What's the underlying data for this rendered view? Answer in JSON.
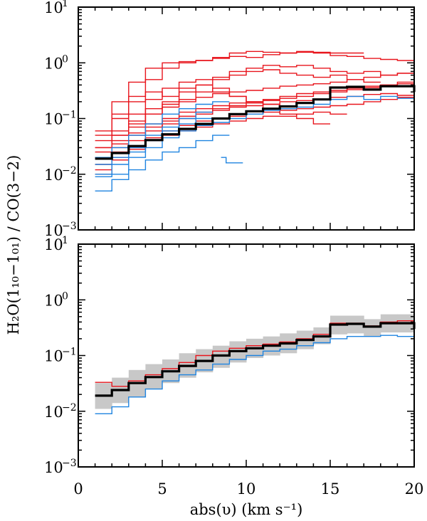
{
  "colors": {
    "red": "#e8141c",
    "blue": "#1f84e0",
    "median": "#000000",
    "band": "#c8c8c8"
  },
  "axis_text": {
    "x_label": "abs(υ) (km s⁻¹)",
    "y_label": "H₂O(1₁₀−1₀₁) / CO(3−2)",
    "y_tick_base": "10",
    "y_ticks": [
      {
        "exp": "1",
        "v": 10
      },
      {
        "exp": "0",
        "v": 1
      },
      {
        "exp": "−1",
        "v": 0.1
      },
      {
        "exp": "−2",
        "v": 0.01
      },
      {
        "exp": "−3",
        "v": 0.001
      }
    ],
    "x_ticks": [
      "0",
      "5",
      "10",
      "15",
      "20"
    ]
  },
  "chart_data": [
    {
      "type": "line",
      "panel": "top",
      "xlabel": "abs(υ) (km s⁻¹)",
      "ylabel": "H₂O(1₁₀−1₀₁) / CO(3−2)",
      "xlim": [
        0,
        20
      ],
      "ylim": [
        0.001,
        10
      ],
      "yscale": "log",
      "step": true,
      "median": {
        "name": "median",
        "x": [
          1.0,
          2.0,
          3.0,
          4.0,
          5.0,
          6.0,
          7.0,
          8.0,
          9.0,
          10.0,
          11.0,
          12.0,
          13.0,
          14.0,
          15.0,
          16.0,
          17.0,
          18.0,
          19.0,
          20.0
        ],
        "values": [
          0.019,
          0.024,
          0.032,
          0.041,
          0.052,
          0.065,
          0.08,
          0.1,
          0.12,
          0.135,
          0.15,
          0.165,
          0.19,
          0.22,
          0.36,
          0.37,
          0.33,
          0.38,
          0.38,
          0.3
        ]
      },
      "red_series": [
        {
          "name": "r1",
          "x": [
            1.0,
            2.0,
            3.0,
            4.0,
            5.0,
            6.0,
            7.0,
            8.0,
            9.0,
            10.0,
            11.0,
            12.0,
            13.0,
            14.0,
            15.0,
            16.0,
            17.0,
            18.0,
            19.0,
            20.0
          ],
          "values": [
            0.04,
            0.1,
            0.25,
            0.5,
            0.8,
            1.0,
            1.1,
            1.2,
            1.3,
            1.25,
            1.4,
            1.5,
            1.55,
            1.5,
            1.35,
            1.3,
            1.2,
            1.15,
            1.1,
            1.05
          ]
        },
        {
          "name": "r2",
          "x": [
            1.0,
            2.0,
            3.0,
            4.0,
            5.0,
            6.0,
            7.0,
            8.0,
            9.0,
            10.0,
            11.0,
            12.0,
            13.0,
            14.0,
            15.0,
            16.0
          ],
          "values": [
            0.06,
            0.2,
            0.45,
            0.8,
            1.0,
            1.05,
            1.1,
            1.25,
            1.5,
            1.6,
            1.55,
            1.5,
            1.6,
            1.55,
            1.5,
            1.5
          ]
        },
        {
          "name": "r3",
          "x": [
            1.0,
            2.0,
            3.0,
            4.0,
            5.0,
            6.0,
            7.0,
            8.0,
            9.0,
            10.0,
            11.0,
            12.0,
            13.0,
            14.0,
            15.0,
            16.0,
            17.0,
            18.0,
            19.0,
            20.0
          ],
          "values": [
            0.03,
            0.06,
            0.12,
            0.22,
            0.35,
            0.45,
            0.5,
            0.55,
            0.7,
            0.8,
            0.9,
            0.85,
            0.9,
            0.8,
            0.7,
            0.65,
            0.7,
            0.6,
            0.65,
            0.55
          ]
        },
        {
          "name": "r4",
          "x": [
            1.0,
            2.0,
            3.0,
            4.0,
            5.0,
            6.0,
            7.0,
            8.0,
            9.0,
            10.0,
            11.0,
            12.0,
            13.0,
            14.0,
            15.0,
            16.0,
            17.0
          ],
          "values": [
            0.025,
            0.05,
            0.09,
            0.15,
            0.2,
            0.3,
            0.4,
            0.5,
            0.6,
            0.7,
            0.75,
            0.65,
            0.6,
            0.55,
            0.6,
            0.5,
            0.45
          ]
        },
        {
          "name": "r5",
          "x": [
            1.0,
            2.0,
            3.0,
            4.0,
            5.0,
            6.0,
            7.0,
            8.0,
            9.0,
            10.0,
            11.0,
            12.0,
            13.0,
            14.0,
            15.0,
            16.0,
            17.0,
            18.0,
            19.0,
            20.0
          ],
          "values": [
            0.03,
            0.05,
            0.08,
            0.12,
            0.16,
            0.2,
            0.24,
            0.28,
            0.3,
            0.32,
            0.35,
            0.38,
            0.4,
            0.42,
            0.45,
            0.5,
            0.55,
            0.6,
            0.65,
            0.7
          ]
        },
        {
          "name": "r6",
          "x": [
            1.0,
            2.0,
            3.0,
            4.0,
            5.0,
            6.0,
            7.0,
            8.0,
            9.0,
            10.0,
            11.0,
            12.0,
            13.0,
            14.0,
            15.0,
            16.0,
            17.0,
            18.0,
            19.0,
            20.0
          ],
          "values": [
            0.02,
            0.035,
            0.055,
            0.08,
            0.1,
            0.13,
            0.15,
            0.17,
            0.19,
            0.2,
            0.22,
            0.25,
            0.28,
            0.3,
            0.32,
            0.35,
            0.38,
            0.4,
            0.42,
            0.45
          ]
        },
        {
          "name": "r7",
          "x": [
            1.0,
            2.0,
            3.0,
            4.0,
            5.0,
            6.0,
            7.0,
            8.0,
            9.0,
            10.0,
            11.0,
            12.0,
            13.0,
            14.0,
            15.0,
            16.0,
            17.0,
            18.0,
            19.0,
            20.0
          ],
          "values": [
            0.015,
            0.025,
            0.04,
            0.06,
            0.08,
            0.1,
            0.12,
            0.14,
            0.16,
            0.17,
            0.18,
            0.2,
            0.21,
            0.22,
            0.24,
            0.25,
            0.27,
            0.28,
            0.26,
            0.25
          ]
        },
        {
          "name": "r8",
          "x": [
            1.0,
            2.0,
            3.0,
            4.0,
            5.0,
            6.0,
            7.0,
            8.0,
            9.0,
            10.0,
            11.0,
            12.0,
            13.0,
            14.0,
            15.0,
            16.0,
            17.0,
            18.0,
            19.0,
            20.0
          ],
          "values": [
            0.012,
            0.02,
            0.03,
            0.045,
            0.06,
            0.075,
            0.09,
            0.1,
            0.11,
            0.12,
            0.13,
            0.14,
            0.15,
            0.16,
            0.17,
            0.18,
            0.2,
            0.22,
            0.24,
            0.25
          ]
        },
        {
          "name": "r9",
          "x": [
            1.0,
            2.0,
            3.0,
            4.0,
            5.0,
            6.0,
            7.0,
            8.0,
            9.0,
            10.0,
            11.0,
            12.0,
            13.0,
            14.0,
            15.0
          ],
          "values": [
            0.01,
            0.018,
            0.028,
            0.04,
            0.05,
            0.06,
            0.07,
            0.08,
            0.09,
            0.1,
            0.11,
            0.11,
            0.12,
            0.13,
            0.12
          ]
        },
        {
          "name": "r10",
          "x": [
            1.0,
            2.0,
            3.0,
            4.0,
            5.0,
            6.0,
            7.0,
            8.0,
            9.0,
            10.0,
            11.0,
            12.0,
            13.0,
            14.0
          ],
          "values": [
            0.02,
            0.04,
            0.07,
            0.12,
            0.18,
            0.22,
            0.3,
            0.35,
            0.25,
            0.2,
            0.15,
            0.12,
            0.1,
            0.08
          ]
        },
        {
          "name": "r11",
          "x": [
            1.0,
            2.0,
            3.0,
            4.0,
            5.0,
            6.0,
            7.0,
            8.0,
            9.0,
            10.0,
            11.0,
            12.0
          ],
          "values": [
            0.05,
            0.12,
            0.2,
            0.3,
            0.25,
            0.35,
            0.4,
            0.3,
            0.25,
            0.2,
            0.18,
            0.15
          ]
        },
        {
          "name": "r12",
          "x": [
            1.0,
            2.0,
            3.0,
            4.0,
            5.0,
            6.0,
            7.0,
            8.0,
            9.0,
            10.0,
            11.0,
            12.0,
            13.0,
            14.0,
            15.0,
            16.0,
            17.0,
            18.0,
            19.0,
            20.0
          ],
          "values": [
            0.02,
            0.03,
            0.05,
            0.07,
            0.09,
            0.11,
            0.13,
            0.15,
            0.17,
            0.19,
            0.21,
            0.23,
            0.25,
            0.28,
            0.3,
            0.33,
            0.36,
            0.4,
            0.45,
            0.5
          ]
        }
      ],
      "blue_series": [
        {
          "name": "b1",
          "x": [
            1.0,
            2.0,
            3.0,
            4.0,
            5.0,
            6.0,
            7.0,
            8.0
          ],
          "values": [
            0.005,
            0.008,
            0.012,
            0.018,
            0.025,
            0.03,
            0.04,
            0.05
          ]
        },
        {
          "name": "b2",
          "x": [
            1.0,
            2.0,
            3.0,
            4.0,
            5.0,
            6.0,
            7.0
          ],
          "values": [
            0.01,
            0.015,
            0.025,
            0.04,
            0.06,
            0.08,
            0.1
          ]
        },
        {
          "name": "b3",
          "x": [
            1.0,
            2.0,
            3.0,
            4.0,
            5.0,
            6.0,
            7.0,
            8.0
          ],
          "values": [
            0.02,
            0.03,
            0.05,
            0.08,
            0.12,
            0.15,
            0.18,
            0.2
          ]
        },
        {
          "name": "b4",
          "x": [
            1.0,
            2.0,
            3.0,
            4.0,
            5.0,
            6.0,
            7.0
          ],
          "values": [
            0.015,
            0.02,
            0.03,
            0.05,
            0.07,
            0.1,
            0.13
          ]
        },
        {
          "name": "b5",
          "x": [
            1.0,
            2.0,
            3.0,
            4.0,
            5.0,
            6.0,
            7.0,
            8.0,
            9.0,
            10.0,
            11.0,
            12.0,
            13.0,
            14.0,
            15.0,
            16.0,
            17.0,
            18.0,
            19.0,
            20.0
          ],
          "values": [
            0.009,
            0.01,
            0.02,
            0.03,
            0.045,
            0.06,
            0.075,
            0.085,
            0.1,
            0.12,
            0.14,
            0.15,
            0.16,
            0.18,
            0.22,
            0.25,
            0.22,
            0.25,
            0.23,
            0.2
          ]
        },
        {
          "name": "b6",
          "x": [
            8.5,
            8.8
          ],
          "values": [
            0.02,
            0.016
          ]
        }
      ]
    },
    {
      "type": "line",
      "panel": "bottom",
      "xlabel": "abs(υ) (km s⁻¹)",
      "ylabel": "H₂O(1₁₀−1₀₁) / CO(3−2)",
      "xlim": [
        0,
        20
      ],
      "ylim": [
        0.001,
        10
      ],
      "yscale": "log",
      "step": true,
      "band": {
        "name": "spread",
        "x": [
          1.0,
          2.0,
          3.0,
          4.0,
          5.0,
          6.0,
          7.0,
          8.0,
          9.0,
          10.0,
          11.0,
          12.0,
          13.0,
          14.0,
          15.0,
          16.0,
          17.0,
          18.0,
          19.0,
          20.0
        ],
        "lower": [
          0.011,
          0.014,
          0.018,
          0.025,
          0.032,
          0.04,
          0.05,
          0.06,
          0.075,
          0.09,
          0.1,
          0.11,
          0.13,
          0.16,
          0.24,
          0.25,
          0.22,
          0.26,
          0.26,
          0.22
        ],
        "upper": [
          0.032,
          0.04,
          0.055,
          0.07,
          0.085,
          0.11,
          0.13,
          0.15,
          0.18,
          0.2,
          0.22,
          0.25,
          0.28,
          0.32,
          0.52,
          0.52,
          0.45,
          0.55,
          0.55,
          0.42
        ]
      },
      "median": {
        "name": "median",
        "x": [
          1.0,
          2.0,
          3.0,
          4.0,
          5.0,
          6.0,
          7.0,
          8.0,
          9.0,
          10.0,
          11.0,
          12.0,
          13.0,
          14.0,
          15.0,
          16.0,
          17.0,
          18.0,
          19.0,
          20.0
        ],
        "values": [
          0.019,
          0.024,
          0.032,
          0.041,
          0.052,
          0.065,
          0.08,
          0.1,
          0.12,
          0.135,
          0.15,
          0.165,
          0.19,
          0.22,
          0.36,
          0.37,
          0.33,
          0.38,
          0.38,
          0.3
        ]
      },
      "red_series": [
        {
          "name": "red",
          "x": [
            1.0,
            2.0,
            3.0,
            4.0,
            5.0,
            6.0,
            7.0,
            8.0,
            9.0,
            10.0,
            11.0,
            12.0,
            13.0,
            14.0,
            15.0,
            16.0,
            17.0,
            18.0,
            19.0,
            20.0
          ],
          "values": [
            0.033,
            0.028,
            0.035,
            0.045,
            0.058,
            0.075,
            0.1,
            0.12,
            0.135,
            0.15,
            0.16,
            0.175,
            0.2,
            0.24,
            0.38,
            0.38,
            0.34,
            0.4,
            0.42,
            0.33
          ]
        }
      ],
      "blue_series": [
        {
          "name": "blue",
          "x": [
            1.0,
            2.0,
            3.0,
            4.0,
            5.0,
            6.0,
            7.0,
            8.0,
            9.0,
            10.0,
            11.0,
            12.0,
            13.0,
            14.0,
            15.0,
            16.0,
            17.0,
            18.0,
            19.0,
            20.0
          ],
          "values": [
            0.009,
            0.012,
            0.018,
            0.025,
            0.035,
            0.045,
            0.055,
            0.07,
            0.085,
            0.1,
            0.12,
            0.13,
            0.15,
            0.17,
            0.2,
            0.22,
            0.22,
            0.23,
            0.22,
            0.2
          ]
        }
      ]
    }
  ]
}
